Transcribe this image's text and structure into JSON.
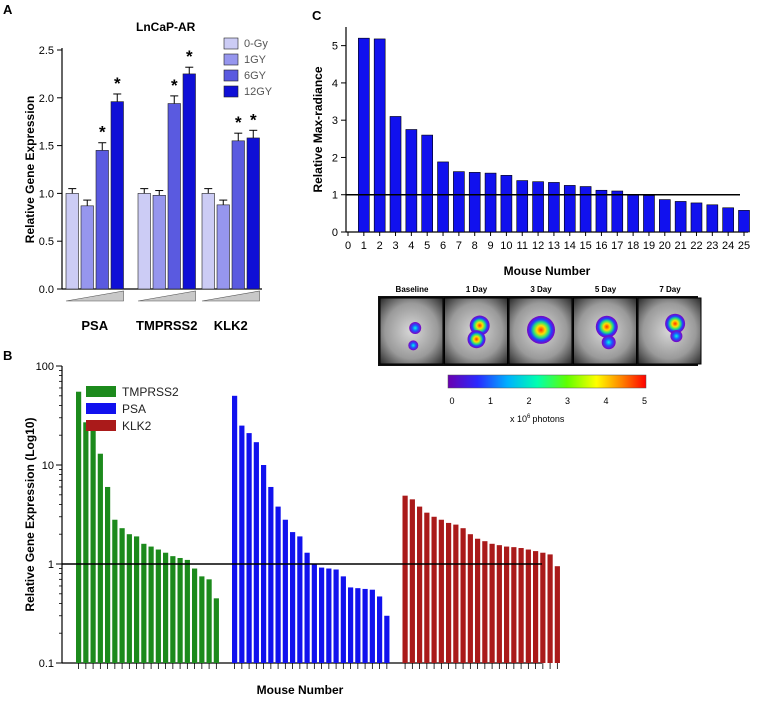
{
  "chart_data": [
    {
      "panel": "A",
      "type": "bar",
      "title": "LnCaP-AR",
      "ylabel": "Relative Gene Expression",
      "ylim": [
        0,
        2.5
      ],
      "yticks": [
        0.0,
        0.5,
        1.0,
        1.5,
        2.0,
        2.5
      ],
      "ytick_labels": [
        "0.0",
        "0.5",
        "1.0",
        "1.5",
        "2.0",
        "2.5"
      ],
      "categories": [
        "PSA",
        "TMPRSS2",
        "KLK2"
      ],
      "series": [
        {
          "name": "0-Gy",
          "color": "#ccccf5",
          "values": [
            1.0,
            1.0,
            1.0
          ],
          "errors": [
            0.05,
            0.05,
            0.05
          ]
        },
        {
          "name": "1GY",
          "color": "#9696ee",
          "values": [
            0.87,
            0.98,
            0.88
          ],
          "errors": [
            0.06,
            0.05,
            0.05
          ]
        },
        {
          "name": "6GY",
          "color": "#5a5ae0",
          "values": [
            1.45,
            1.94,
            1.55
          ],
          "errors": [
            0.08,
            0.08,
            0.08
          ]
        },
        {
          "name": "12GY",
          "color": "#0f0fd6",
          "values": [
            1.96,
            2.25,
            1.58
          ],
          "errors": [
            0.08,
            0.07,
            0.08
          ]
        }
      ],
      "significance": [
        "*",
        "*",
        "*",
        "*",
        "*",
        "*"
      ]
    },
    {
      "panel": "C",
      "type": "bar",
      "ylabel": "Relative Max-radiance",
      "xlabel": "Mouse Number",
      "ylim": [
        0,
        5.5
      ],
      "yticks": [
        0,
        1,
        2,
        3,
        4,
        5
      ],
      "ytick_labels": [
        "0",
        "1",
        "2",
        "3",
        "4",
        "5"
      ],
      "xtick_labels": [
        "0",
        "1",
        "2",
        "3",
        "4",
        "5",
        "6",
        "7",
        "8",
        "9",
        "10",
        "11",
        "12",
        "13",
        "14",
        "15",
        "16",
        "17",
        "18",
        "19",
        "20",
        "21",
        "22",
        "23",
        "24",
        "25"
      ],
      "reference_line": 1,
      "color": "#1111ee",
      "values": [
        5.2,
        5.18,
        3.1,
        2.75,
        2.6,
        1.88,
        1.62,
        1.6,
        1.58,
        1.52,
        1.38,
        1.35,
        1.33,
        1.25,
        1.22,
        1.12,
        1.1,
        1.0,
        0.98,
        0.87,
        0.82,
        0.78,
        0.73,
        0.65,
        0.58
      ]
    },
    {
      "panel": "B",
      "type": "bar",
      "scale": "log10",
      "ylabel": "Relative Gene Expression (Log10)",
      "xlabel": "Mouse Number",
      "ylim": [
        0.1,
        100
      ],
      "ytick_labels": [
        "0.1",
        "1",
        "10",
        "100"
      ],
      "reference_line": 1,
      "series": [
        {
          "name": "TMPRSS2",
          "color": "#1c8a1c",
          "values": [
            55,
            27,
            23,
            13,
            6,
            2.8,
            2.3,
            2.0,
            1.9,
            1.6,
            1.5,
            1.4,
            1.3,
            1.2,
            1.15,
            1.1,
            0.9,
            0.75,
            0.7,
            0.45
          ]
        },
        {
          "name": "PSA",
          "color": "#1111ee",
          "values": [
            50,
            25,
            21,
            17,
            10,
            6,
            3.8,
            2.8,
            2.1,
            1.9,
            1.3,
            1.0,
            0.92,
            0.9,
            0.88,
            0.75,
            0.58,
            0.57,
            0.56,
            0.55,
            0.47,
            0.3
          ]
        },
        {
          "name": "KLK2",
          "color": "#aa1a1a",
          "values": [
            4.9,
            4.5,
            3.8,
            3.3,
            3.0,
            2.8,
            2.6,
            2.5,
            2.3,
            2.0,
            1.8,
            1.7,
            1.6,
            1.55,
            1.5,
            1.48,
            1.45,
            1.4,
            1.35,
            1.3,
            1.25,
            0.95
          ]
        }
      ]
    }
  ],
  "panels": {
    "a": {
      "letter": "A"
    },
    "b": {
      "letter": "B"
    },
    "c": {
      "letter": "C"
    }
  },
  "imaging": {
    "timepoints": [
      "Baseline",
      "1 Day",
      "3 Day",
      "5 Day",
      "7 Day"
    ],
    "colorbar_ticks": [
      "0",
      "1",
      "2",
      "3",
      "4",
      "5"
    ],
    "colorbar_label": "x 10",
    "colorbar_exponent": "6",
    "colorbar_unit": "photons"
  }
}
